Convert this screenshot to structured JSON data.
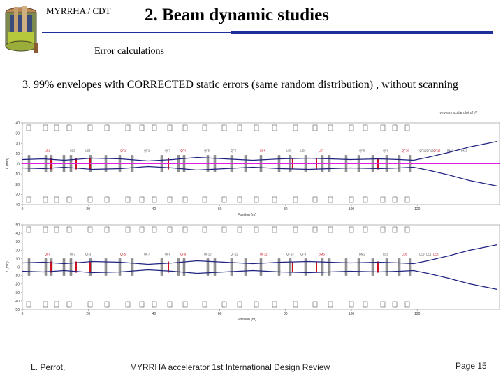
{
  "header": {
    "org_label": "MYRRHA / CDT",
    "title": "2. Beam dynamic studies"
  },
  "slide": {
    "subtitle": "Error calculations",
    "description": "3. 99% envelopes with CORRECTED static errors (same random distribution) , without scanning"
  },
  "plot_tag": "Ivebeam scalar plot of \\V",
  "plots": {
    "top": {
      "xlabel": "Position (m)",
      "ylabel": "X (mm)",
      "x_ticks": [
        "0",
        "20",
        "40",
        "60",
        "80",
        "100",
        "120"
      ],
      "y_ticks": [
        "40",
        "30",
        "20",
        "10",
        "0",
        "-10",
        "-20",
        "-30",
        "-40"
      ],
      "element_labels": [
        "LE1",
        "LE2",
        "LE3",
        "QF1",
        "QF2",
        "QF3",
        "QF4",
        "QF5",
        "QF6",
        "LE4",
        "LE5",
        "LE6",
        "LE7",
        "QF8",
        "QF9",
        "QF10",
        "QF11",
        "QF12",
        "QF13",
        "BMS",
        "BM2"
      ]
    },
    "bottom": {
      "xlabel": "Position (m)",
      "ylabel": "Y (mm)",
      "x_ticks": [
        "0",
        "20",
        "40",
        "60",
        "80",
        "100",
        "120"
      ],
      "y_ticks": [
        "50",
        "40",
        "30",
        "20",
        "10",
        "0",
        "-10",
        "-20",
        "-30",
        "-40",
        "-50"
      ],
      "element_labels": [
        "QF0",
        "QF2",
        "QF3",
        "QF5",
        "QF7",
        "QF8",
        "QF9",
        "QF10",
        "QF11",
        "QF12",
        "QF13",
        "QF4",
        "BMS",
        "BM2",
        "LE3",
        "LE6",
        "LE9",
        "LE1",
        "LE8"
      ]
    }
  },
  "footer": {
    "author": "L. Perrot,",
    "event": "MYRRHA accelerator 1st International Design Review",
    "page": "Page 15"
  },
  "colors": {
    "envelope": "#1f2480",
    "center": "#e020e0",
    "magnet": "#cc1020",
    "rule": "#1f2f9a"
  }
}
